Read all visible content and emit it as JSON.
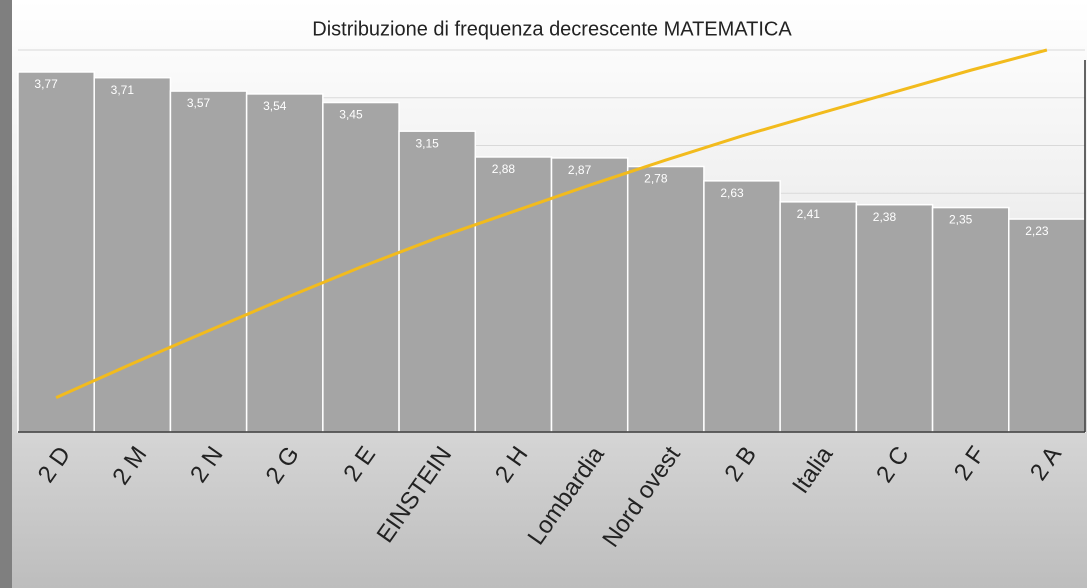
{
  "chart_data": {
    "type": "bar",
    "title": "Distribuzione di frequenza decrescente MATEMATICA",
    "categories": [
      "2 D",
      "2 M",
      "2 N",
      "2 G",
      "2 E",
      "EINSTEIN",
      "2 H",
      "Lombardia",
      "Nord ovest",
      "2 B",
      "Italia",
      "2 C",
      "2 F",
      "2 A"
    ],
    "series": [
      {
        "type": "bar",
        "color": "#a5a5a5",
        "values": [
          3.77,
          3.71,
          3.57,
          3.54,
          3.45,
          3.15,
          2.88,
          2.87,
          2.78,
          2.63,
          2.41,
          2.38,
          2.35,
          2.23
        ],
        "value_labels": [
          "3,77",
          "3,71",
          "3,57",
          "3,54",
          "3,45",
          "3,15",
          "2,88",
          "2,87",
          "2,78",
          "2,63",
          "2,41",
          "2,38",
          "2,35",
          "2,23"
        ]
      },
      {
        "type": "line",
        "color": "#f2bb1d",
        "axis": "y2",
        "values": [
          9.0,
          17.9,
          26.5,
          35.0,
          43.2,
          50.8,
          57.7,
          64.6,
          71.2,
          77.5,
          83.3,
          89.0,
          94.7,
          100
        ]
      }
    ],
    "ylim": [
      0,
      4
    ],
    "yticks": [
      0,
      0.5,
      1,
      1.5,
      2,
      2.5,
      3,
      3.5,
      4
    ],
    "y2lim": [
      0,
      100
    ],
    "grid": true
  }
}
